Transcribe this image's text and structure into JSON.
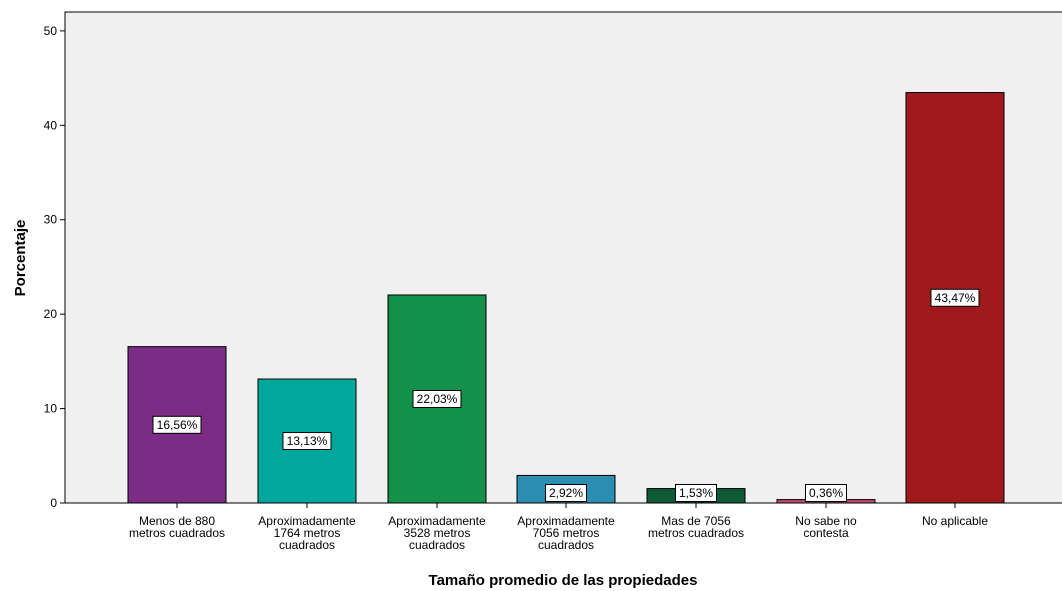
{
  "chart_data": {
    "type": "bar",
    "title": "",
    "xlabel": "Tamaño promedio de las propiedades",
    "ylabel": "Porcentaje",
    "ylim": [
      0,
      52
    ],
    "yticks": [
      0,
      10,
      20,
      30,
      40,
      50
    ],
    "grid": false,
    "legend": "none",
    "categories": [
      [
        "Menos de 880",
        "metros cuadrados"
      ],
      [
        "Aproximadamente",
        "1764 metros",
        "cuadrados"
      ],
      [
        "Aproximadamente",
        "3528 metros",
        "cuadrados"
      ],
      [
        "Aproximadamente",
        "7056 metros",
        "cuadrados"
      ],
      [
        "Mas de 7056",
        "metros cuadrados"
      ],
      [
        "No sabe no",
        "contesta"
      ],
      [
        "No aplicable"
      ]
    ],
    "values": [
      16.56,
      13.13,
      22.03,
      2.92,
      1.53,
      0.36,
      43.47
    ],
    "value_labels": [
      "16,56%",
      "13,13%",
      "22,03%",
      "2,92%",
      "1,53%",
      "0,36%",
      "43,47%"
    ],
    "colors": [
      "#7B2C84",
      "#00A79D",
      "#13904A",
      "#2B8DB1",
      "#0D5A34",
      "#C04A6E",
      "#9F1A1D"
    ],
    "plot_background": "#F0F0F0"
  }
}
